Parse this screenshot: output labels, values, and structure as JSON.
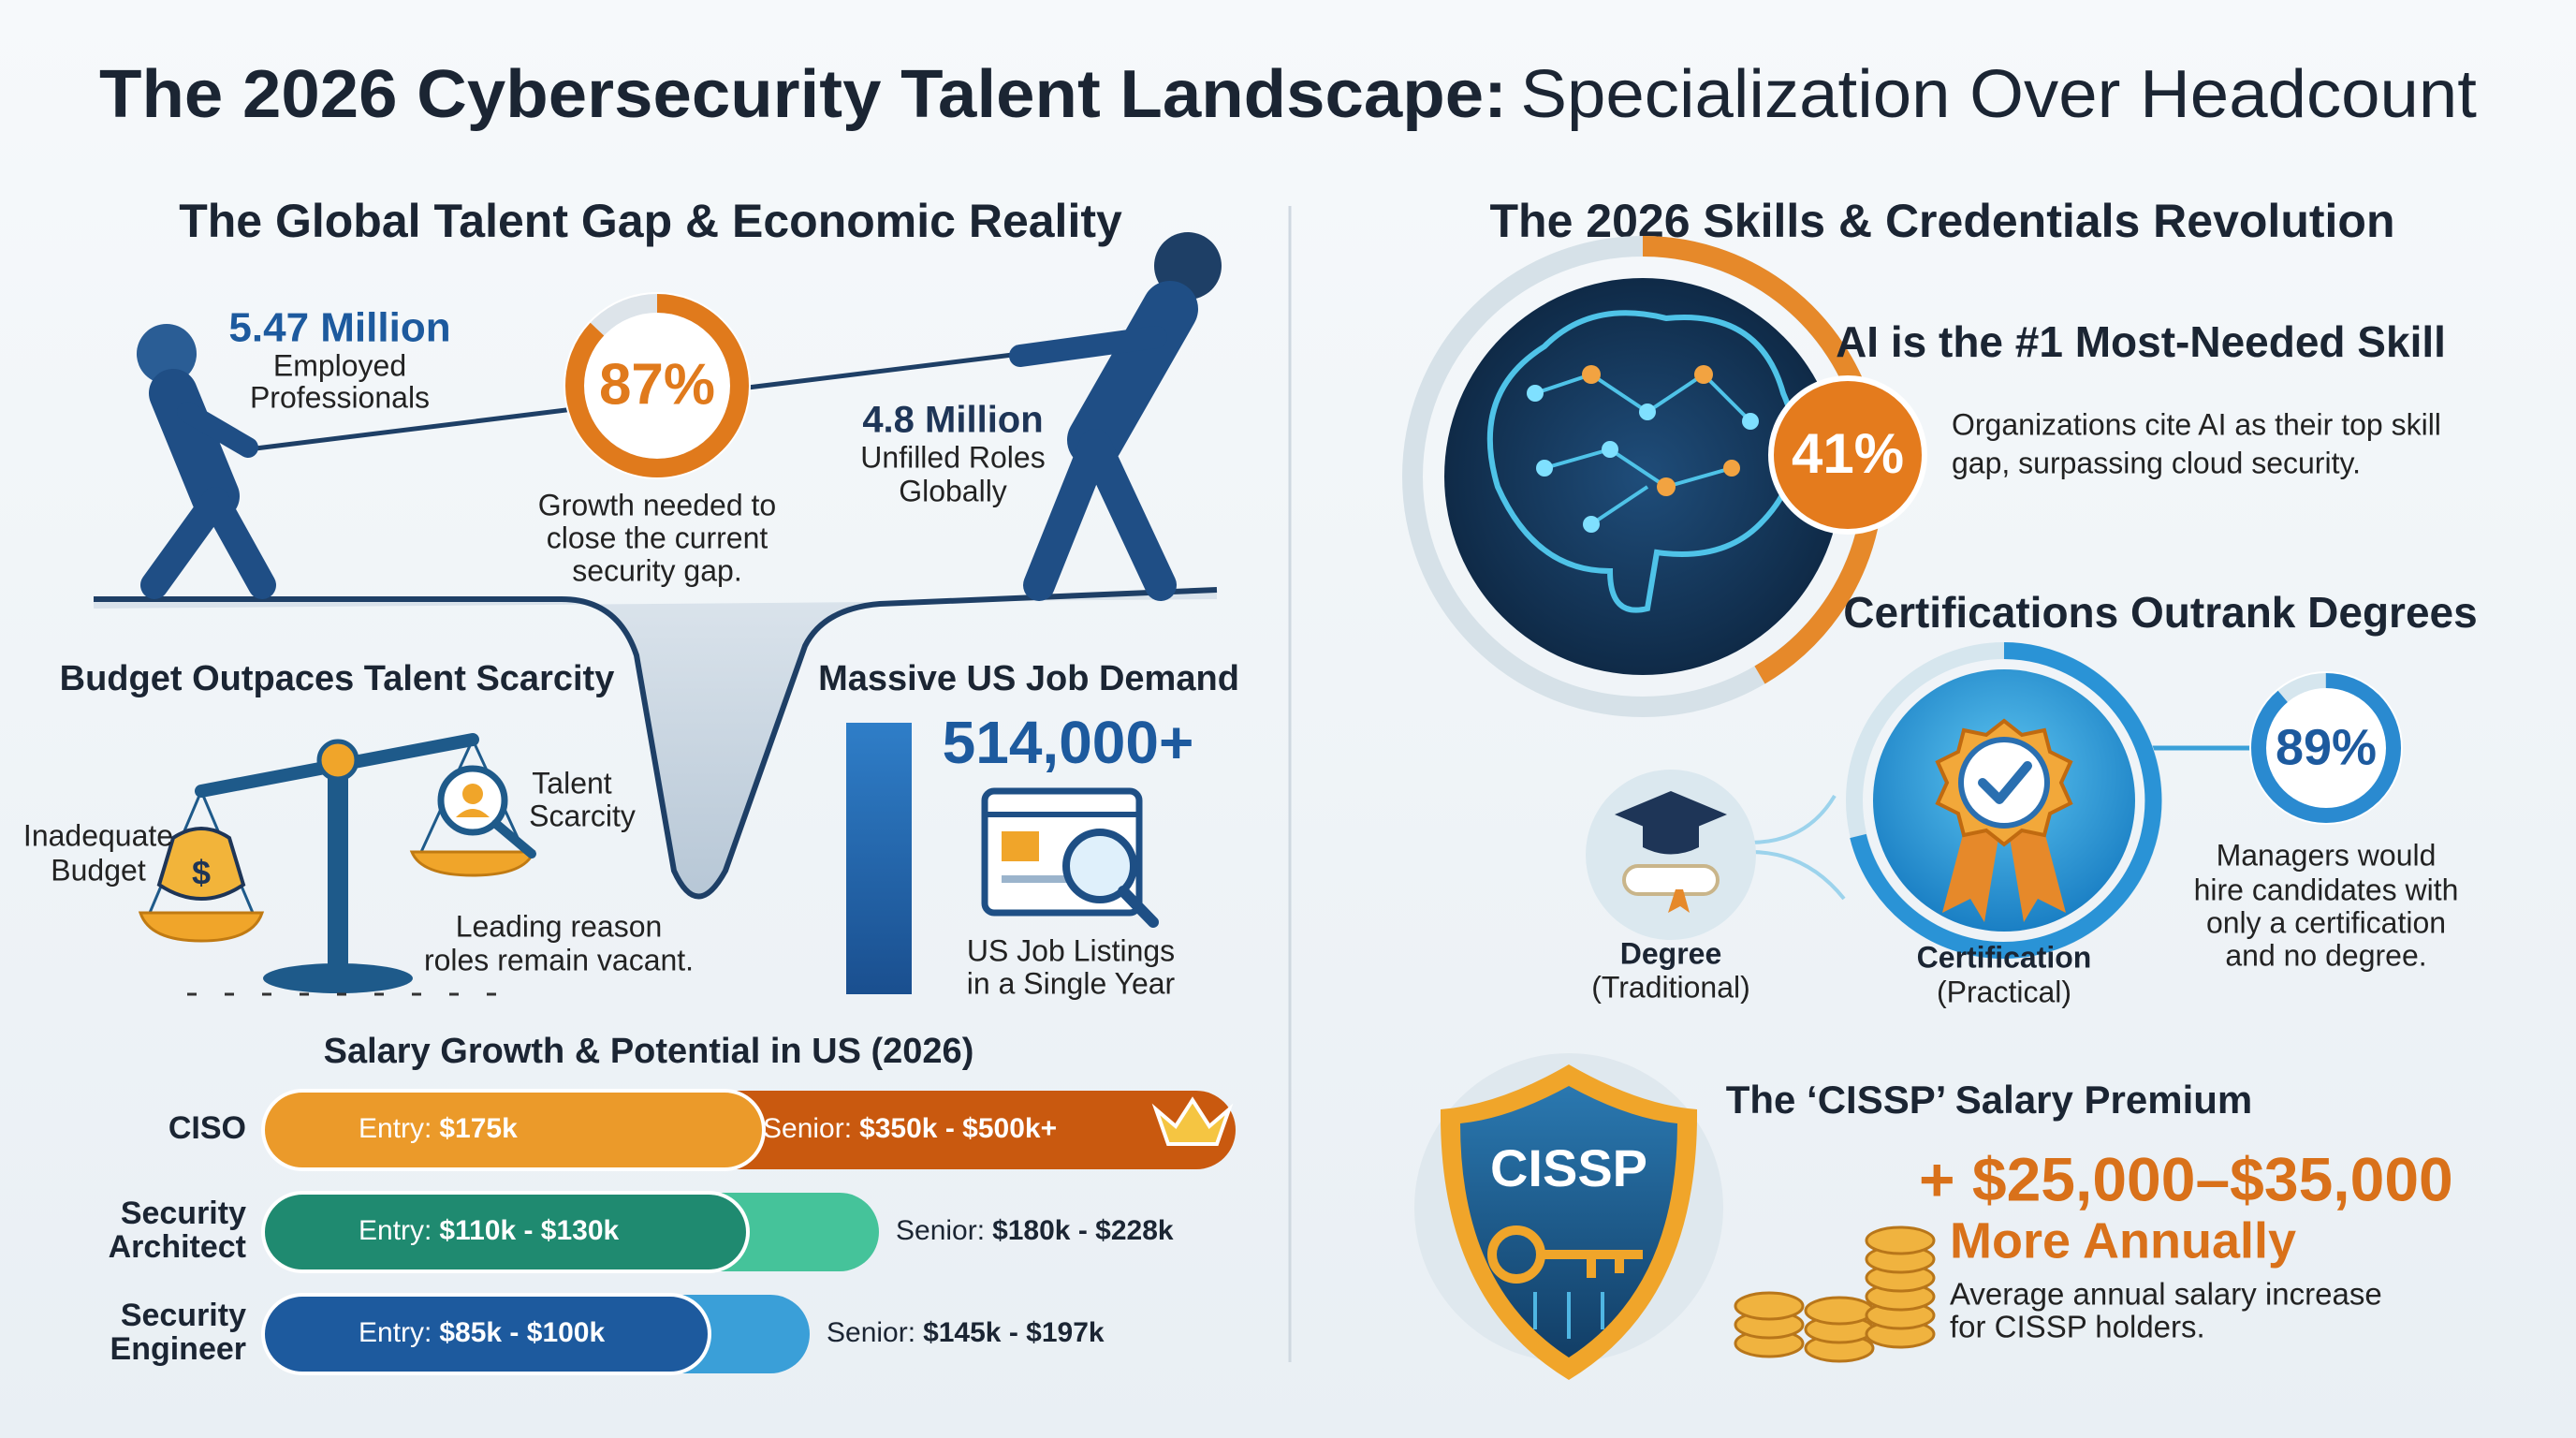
{
  "header": {
    "title_bold": "The 2026 Cybersecurity Talent Landscape:",
    "title_light": "Specialization Over Headcount"
  },
  "left": {
    "heading": "The Global Talent Gap & Economic Reality",
    "workforce": {
      "value": "5.47 Million",
      "lines": [
        "Employed",
        "Professionals"
      ]
    },
    "growth": {
      "value": "87%",
      "lines": [
        "Growth needed to",
        "close the current",
        "security gap."
      ]
    },
    "unfilled": {
      "value": "4.8 Million",
      "lines": [
        "Unfilled Roles",
        "Globally"
      ]
    },
    "budget": {
      "heading": "Budget Outpaces Talent Scarcity",
      "left_label": [
        "Inadequate",
        "Budget"
      ],
      "right_label": [
        "Talent",
        "Scarcity"
      ],
      "caption": [
        "Leading reason",
        "roles remain vacant."
      ]
    },
    "demand": {
      "heading": "Massive US Job Demand",
      "value": "514,000+",
      "caption": [
        "US Job Listings",
        "in a Single Year"
      ]
    },
    "salary": {
      "heading": "Salary Growth & Potential in US (2026)",
      "rows": [
        {
          "role": [
            "CISO"
          ],
          "entry_label": "Entry:",
          "entry": "$175k",
          "senior_label": "Senior:",
          "senior": "$350k - $500k+"
        },
        {
          "role": [
            "Security",
            "Architect"
          ],
          "entry_label": "Entry:",
          "entry": "$110k - $130k",
          "senior_label": "Senior:",
          "senior": "$180k - $228k"
        },
        {
          "role": [
            "Security",
            "Engineer"
          ],
          "entry_label": "Entry:",
          "entry": "$85k - $100k",
          "senior_label": "Senior:",
          "senior": "$145k - $197k"
        }
      ]
    }
  },
  "right": {
    "heading": "The 2026 Skills & Credentials Revolution",
    "ai": {
      "heading": "AI is the #1 Most-Needed Skill",
      "value": "41%",
      "lines": [
        "Organizations cite AI as their top skill",
        "gap, surpassing cloud security."
      ]
    },
    "certs": {
      "heading": "Certifications Outrank Degrees",
      "degree": [
        "Degree",
        "(Traditional)"
      ],
      "certification": [
        "Certification",
        "(Practical)"
      ],
      "value": "89%",
      "lines": [
        "Managers would",
        "hire candidates with",
        "only a certification",
        "and no degree."
      ]
    },
    "cissp": {
      "badge": "CISSP",
      "heading": "The ‘CISSP’ Salary Premium",
      "value": "+ $25,000–$35,000",
      "sub": "More Annually",
      "lines": [
        "Average annual salary increase",
        "for CISSP holders."
      ]
    }
  }
}
